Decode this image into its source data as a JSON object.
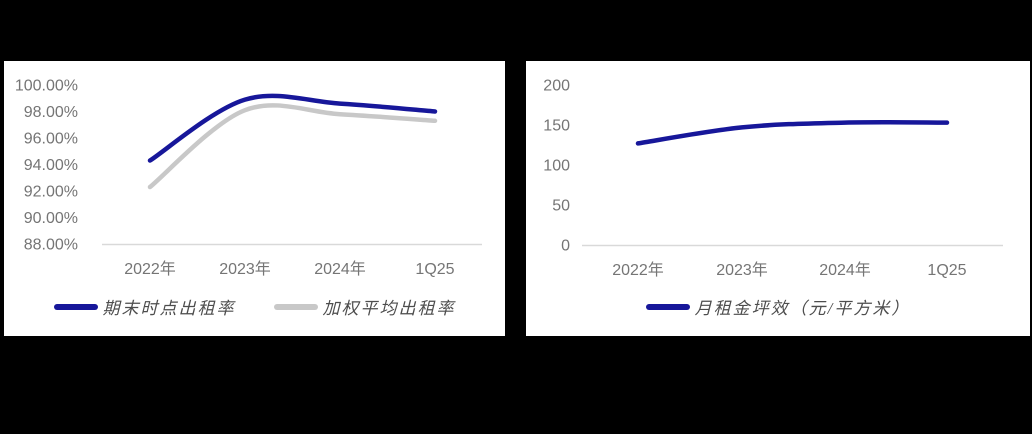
{
  "page": {
    "background": "#000000",
    "panel_background": "#ffffff"
  },
  "colors": {
    "navy": "#17179A",
    "gray_line": "#C8C8C8",
    "axis_line": "#D9D9D9",
    "tick_text": "#757575",
    "legend_text": "#4D4D4D"
  },
  "charts": [
    {
      "name": "occupancy-rate-chart",
      "chart_data": {
        "type": "line",
        "title": "",
        "categories": [
          "2022年",
          "2023年",
          "2024年",
          "1Q25"
        ],
        "series": [
          {
            "name": "期末时点出租率",
            "color": "#17179A",
            "values": [
              94.3,
              98.9,
              98.6,
              98.0
            ]
          },
          {
            "name": "加权平均出租率",
            "color": "#C8C8C8",
            "values": [
              92.3,
              98.1,
              97.8,
              97.3
            ]
          }
        ],
        "ylim": [
          88,
          100
        ],
        "ytick_values": [
          100,
          98,
          96,
          94,
          92,
          90,
          88
        ],
        "ytick_labels": [
          "100.00%",
          "98.00%",
          "96.00%",
          "94.00%",
          "92.00%",
          "90.00%",
          "88.00%"
        ],
        "xlabel": "",
        "ylabel": "",
        "grid": false,
        "legend_position": "bottom"
      }
    },
    {
      "name": "rent-efficiency-chart",
      "chart_data": {
        "type": "line",
        "title": "",
        "categories": [
          "2022年",
          "2023年",
          "2024年",
          "1Q25"
        ],
        "series": [
          {
            "name": "月租金坪效（元/平方米）",
            "color": "#17179A",
            "values": [
              127,
              147,
              153,
              153
            ]
          }
        ],
        "ylim": [
          0,
          200
        ],
        "ytick_values": [
          200,
          150,
          100,
          50,
          0
        ],
        "ytick_labels": [
          "200",
          "150",
          "100",
          "50",
          "0"
        ],
        "xlabel": "",
        "ylabel": "",
        "grid": false,
        "legend_position": "bottom"
      }
    }
  ]
}
